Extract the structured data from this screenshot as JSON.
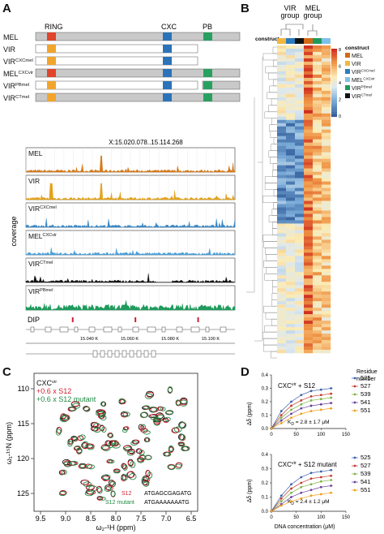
{
  "panels": {
    "A": {
      "letter": "A",
      "domains": {
        "ring": "RING",
        "cxc": "CXC",
        "pb": "PB"
      },
      "constructs": [
        {
          "name": "MEL",
          "sup": "",
          "ring": "#e0442b",
          "cxc": "#2b73b8",
          "pb": "#28a060",
          "tail": "full"
        },
        {
          "name": "VIR",
          "sup": "",
          "ring": "#f1a52c",
          "cxc": "#2b73b8",
          "pb": null,
          "tail": "short"
        },
        {
          "name": "VIR",
          "sup": "CXCmel",
          "ring": "#f1a52c",
          "cxc": "#2b73b8",
          "pb": null,
          "tail": "short"
        },
        {
          "name": "MEL",
          "sup": "CXCvir",
          "ring": "#e0442b",
          "cxc": "#2b73b8",
          "pb": "#28a060",
          "tail": "full"
        },
        {
          "name": "VIR",
          "sup": "PBmel",
          "ring": "#f1a52c",
          "cxc": "#2b73b8",
          "pb": "#28a060",
          "tail": "gap"
        },
        {
          "name": "VIR",
          "sup": "CTmel",
          "ring": "#f1a52c",
          "cxc": "#2b73b8",
          "pb": "#28a060",
          "tail": "full"
        }
      ],
      "browser": {
        "locus": "X:15.020.078..15.114.268",
        "ylabel": "coverage",
        "tracks": [
          {
            "name": "MEL",
            "sup": "",
            "color": "#d47a1a"
          },
          {
            "name": "VIR",
            "sup": "",
            "color": "#e3a21c"
          },
          {
            "name": "VIR",
            "sup": "CXCmel",
            "color": "#3a88c5"
          },
          {
            "name": "MEL",
            "sup": "CXCvir",
            "color": "#4a9fd8"
          },
          {
            "name": "VIR",
            "sup": "CTmel",
            "color": "#111111"
          },
          {
            "name": "VIR",
            "sup": "PBmel",
            "color": "#1f9a5c"
          }
        ],
        "dip_label": "DIP",
        "coords": [
          "15.040 K",
          "15.060 K",
          "15.080 K",
          "15.100 K"
        ]
      }
    },
    "B": {
      "letter": "B",
      "group_vir": "VIR group",
      "group_mel": "MEL group",
      "construct_label": "construct",
      "colorbar_ticks": [
        "8",
        "6",
        "4",
        "2",
        "0"
      ],
      "legend_title": "construct",
      "legend": [
        {
          "name": "MEL",
          "sup": "",
          "color": "#d46a16"
        },
        {
          "name": "VIR",
          "sup": "",
          "color": "#f2b73d"
        },
        {
          "name": "VIR",
          "sup": "CXCmel",
          "color": "#2d7bbf"
        },
        {
          "name": "MEL",
          "sup": "CXCvir",
          "color": "#7fc0e8"
        },
        {
          "name": "VIR",
          "sup": "PBmel",
          "color": "#1f9a5c"
        },
        {
          "name": "VIR",
          "sup": "CTmel",
          "color": "#111111"
        }
      ]
    },
    "C": {
      "letter": "C",
      "legend": [
        {
          "text": "CXC",
          "sup": "vir",
          "color": "#111111"
        },
        {
          "text": "+0.6 x S12",
          "sup": "",
          "color": "#d0202e"
        },
        {
          "text": "+0.6 x S12 mutant",
          "sup": "",
          "color": "#1f8a44"
        }
      ],
      "y_ticks": [
        "110",
        "115",
        "120",
        "125"
      ],
      "x_ticks": [
        "9.5",
        "9.0",
        "8.5",
        "8.0",
        "7.5",
        "7.0",
        "6.5"
      ],
      "ylabel": "ω₁-¹⁵N (ppm)",
      "xlabel": "ω₂-¹H (ppm)",
      "seq_s12_label": "S12",
      "seq_s12": "ATGAGCGAGATG",
      "seq_mut_label": "S12 mutant",
      "seq_mut": "ATGAAAAAAATG"
    },
    "D": {
      "letter": "D",
      "residue_title": "Residue number",
      "title_top": "CXC",
      "title_top_sup": "vir",
      "title_top_suffix": " + S12",
      "kd_top": "K",
      "kd_top_sub": "D",
      "kd_top_value": " = 2.8 ± 1.7 μM",
      "title_bottom": "CXC",
      "title_bottom_sup": "vir",
      "title_bottom_suffix": " + S12 mutant",
      "kd_bottom": "K",
      "kd_bottom_sub": "D",
      "kd_bottom_value": " = 2.4 ± 1.2 μM",
      "ylabel": "Δδ (ppm)",
      "xlabel": "DNA concentration (μM)",
      "y_ticks_top": [
        "0.4",
        "0.3",
        "0.2",
        "0.1",
        "0.0"
      ],
      "y_ticks_bottom": [
        "0.4",
        "0.3",
        "0.2",
        "0.1",
        "0.0"
      ],
      "x_ticks": [
        "0",
        "50",
        "100",
        "150"
      ]
    }
  },
  "chart_data": [
    {
      "type": "line",
      "title": "CXCvir + S12",
      "xlabel": "DNA concentration (μM)",
      "ylabel": "Δδ (ppm)",
      "x": [
        0,
        20,
        40,
        60,
        80,
        100,
        120
      ],
      "xlim": [
        0,
        150
      ],
      "ylim": [
        0,
        0.4
      ],
      "series": [
        {
          "name": "525",
          "color": "#3a5fb0",
          "values": [
            0.0,
            0.13,
            0.2,
            0.25,
            0.28,
            0.29,
            0.3
          ]
        },
        {
          "name": "527",
          "color": "#c0392b",
          "values": [
            0.0,
            0.1,
            0.17,
            0.21,
            0.24,
            0.25,
            0.26
          ]
        },
        {
          "name": "539",
          "color": "#7cb342",
          "values": [
            0.0,
            0.08,
            0.14,
            0.18,
            0.21,
            0.22,
            0.23
          ]
        },
        {
          "name": "541",
          "color": "#6a3d9a",
          "values": [
            0.0,
            0.06,
            0.11,
            0.15,
            0.17,
            0.18,
            0.19
          ]
        },
        {
          "name": "551",
          "color": "#f39c12",
          "values": [
            0.0,
            0.04,
            0.08,
            0.11,
            0.13,
            0.14,
            0.15
          ]
        }
      ]
    },
    {
      "type": "line",
      "title": "CXCvir + S12 mutant",
      "xlabel": "DNA concentration (μM)",
      "ylabel": "Δδ (ppm)",
      "x": [
        0,
        20,
        40,
        60,
        80,
        100,
        120
      ],
      "xlim": [
        0,
        150
      ],
      "ylim": [
        0,
        0.4
      ],
      "series": [
        {
          "name": "525",
          "color": "#3a5fb0",
          "values": [
            0.0,
            0.11,
            0.19,
            0.24,
            0.27,
            0.28,
            0.29
          ]
        },
        {
          "name": "527",
          "color": "#c0392b",
          "values": [
            0.0,
            0.09,
            0.16,
            0.2,
            0.23,
            0.24,
            0.25
          ]
        },
        {
          "name": "539",
          "color": "#7cb342",
          "values": [
            0.0,
            0.07,
            0.13,
            0.17,
            0.19,
            0.21,
            0.22
          ]
        },
        {
          "name": "541",
          "color": "#6a3d9a",
          "values": [
            0.0,
            0.05,
            0.1,
            0.13,
            0.15,
            0.17,
            0.18
          ]
        },
        {
          "name": "551",
          "color": "#f39c12",
          "values": [
            0.0,
            0.04,
            0.07,
            0.09,
            0.11,
            0.12,
            0.13
          ]
        }
      ]
    }
  ]
}
